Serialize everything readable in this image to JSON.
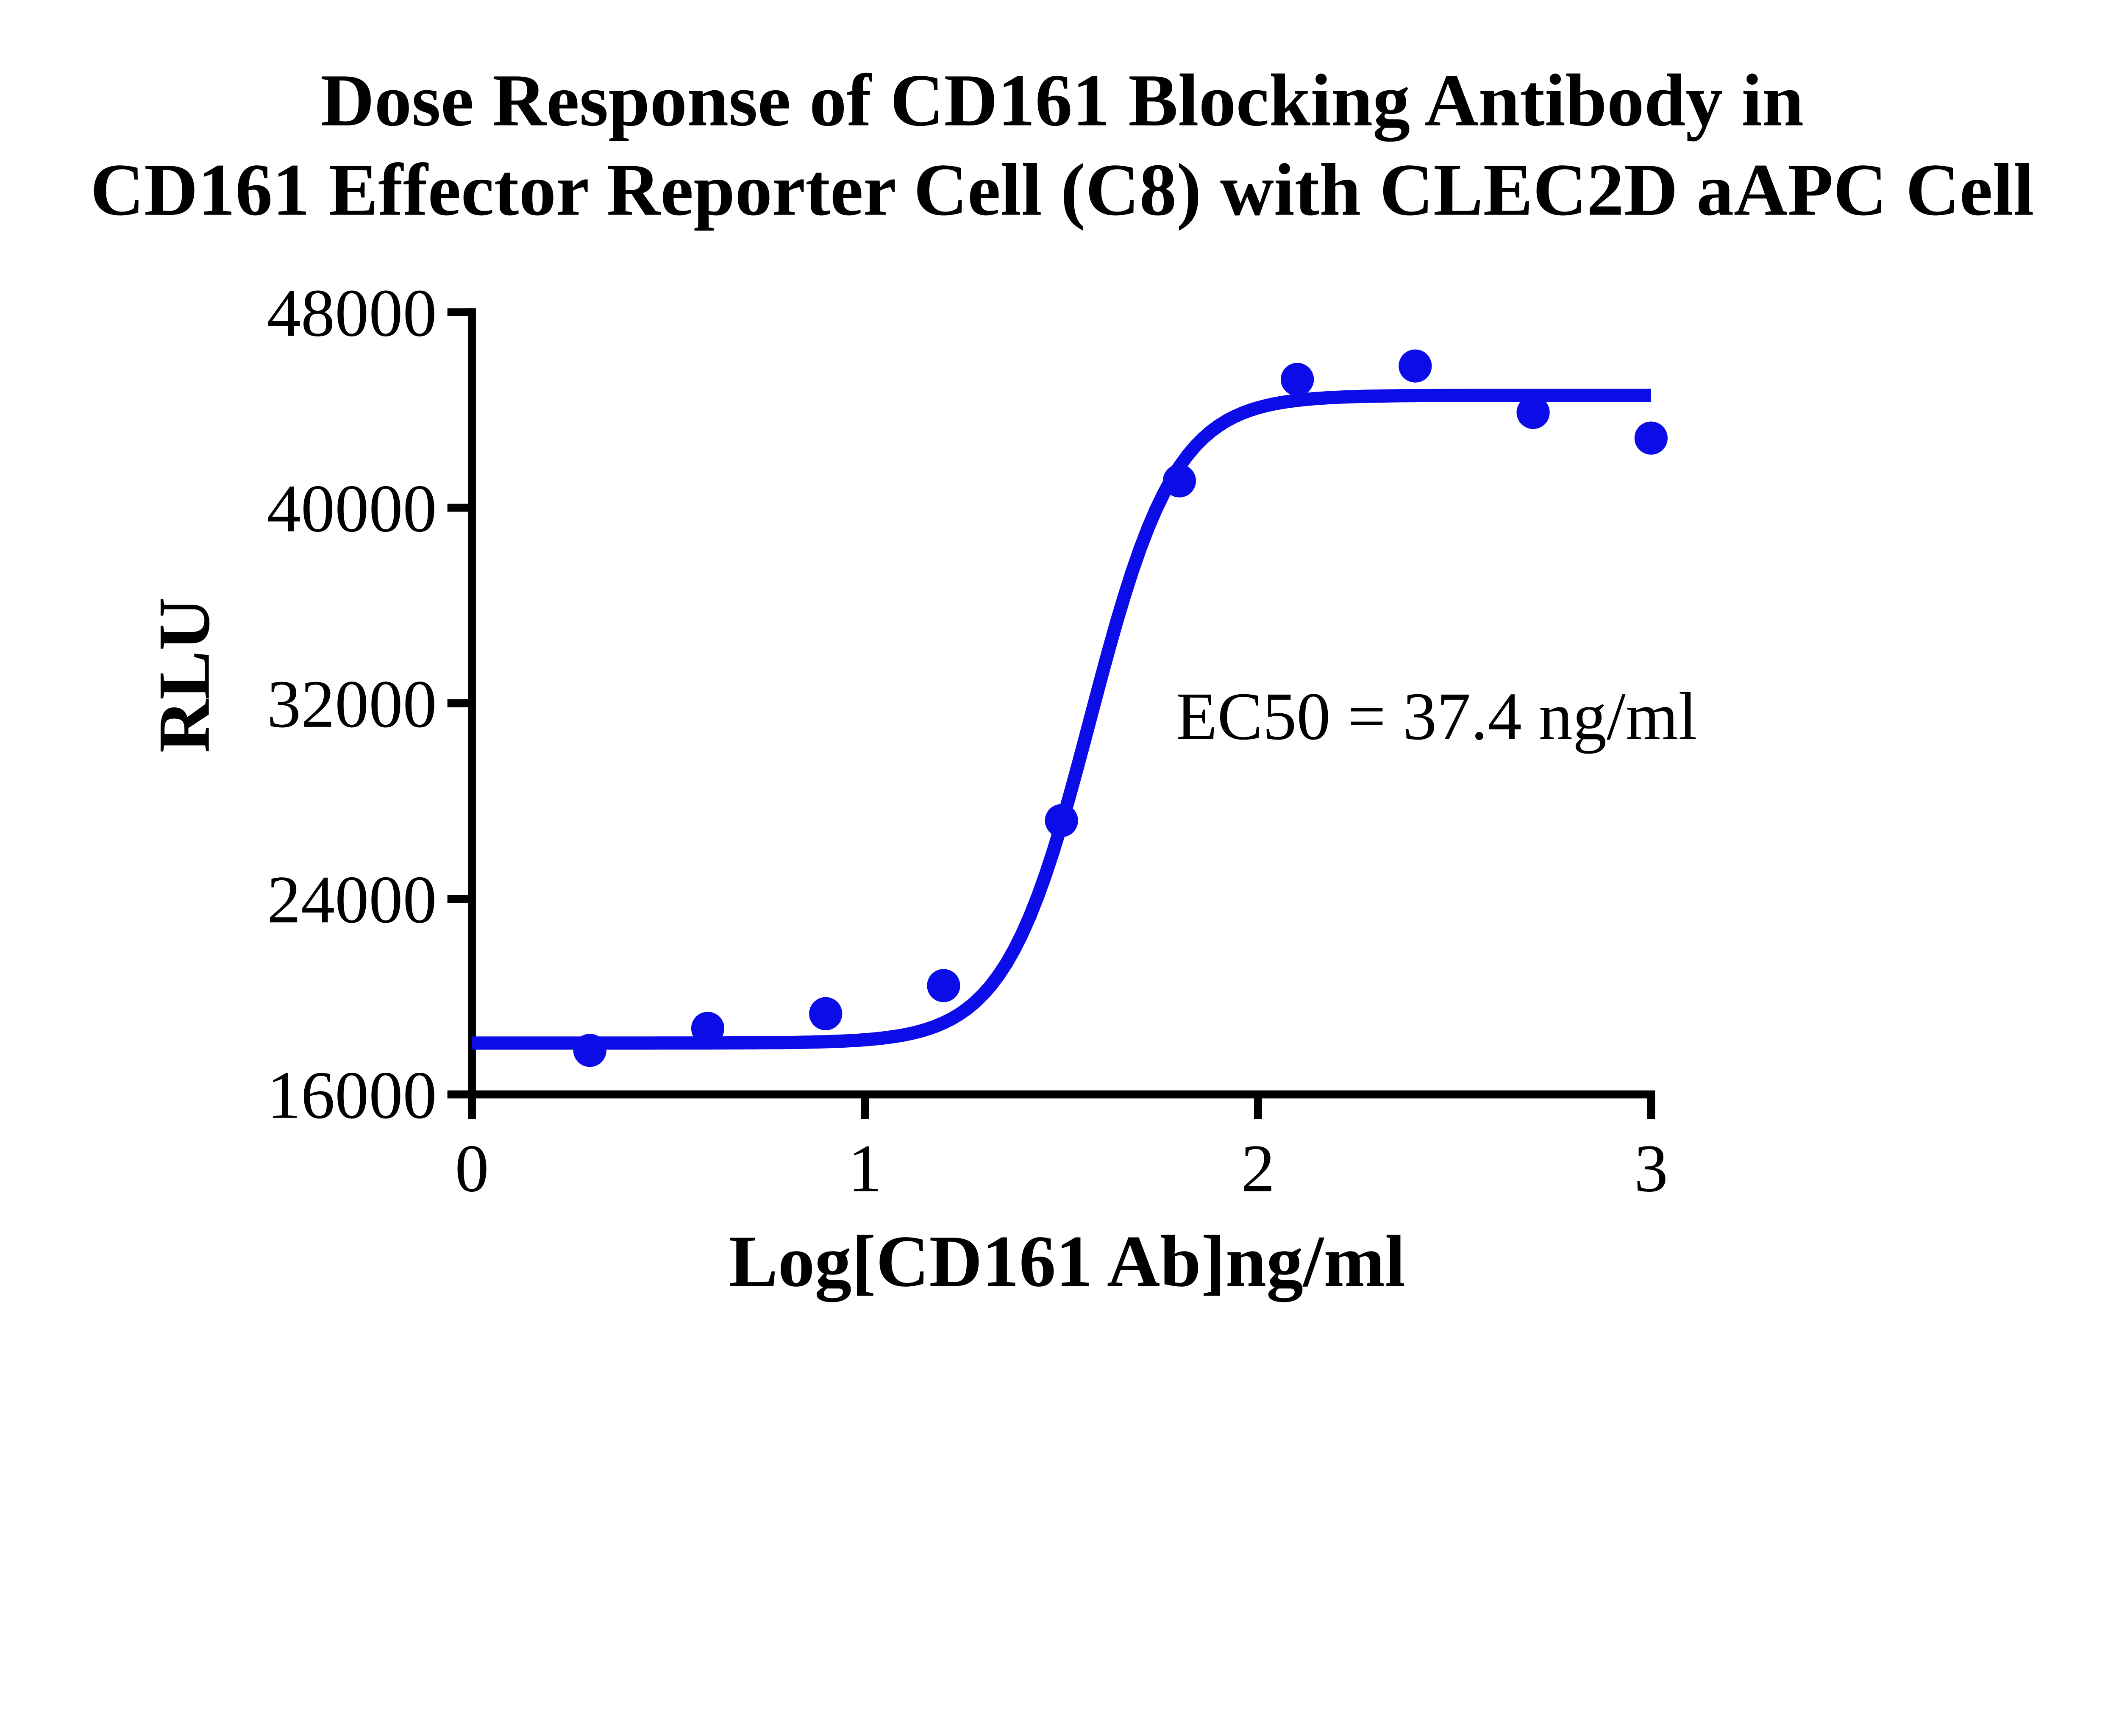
{
  "figure": {
    "title_line1": "Dose Response of CD161 Blocking Antibody in",
    "title_line2": "CD161 Effector Reporter Cell (C8) with CLEC2D aAPC Cell",
    "colors": {
      "curve_blue": "#0C0CE8",
      "axis_black": "#000000",
      "background": "#FFFFFF"
    }
  },
  "chart_data": {
    "type": "scatter",
    "title": "Dose Response of CD161 Blocking Antibody in CD161 Effector Reporter Cell (C8) with CLEC2D aAPC Cell",
    "xlabel": "Log[CD161 Ab]ng/ml",
    "ylabel": "RLU",
    "xlim": [
      0,
      3
    ],
    "ylim": [
      16000,
      48000
    ],
    "x_ticks": [
      0,
      1,
      2,
      3
    ],
    "y_ticks": [
      16000,
      24000,
      32000,
      40000,
      48000
    ],
    "grid": false,
    "legend_position": "none",
    "annotation": "EC50 = 37.4 ng/ml",
    "ec50_ng_ml": 37.4,
    "points": {
      "x": [
        0.3,
        0.6,
        0.9,
        1.2,
        1.5,
        1.8,
        2.1,
        2.4,
        2.7,
        3.0
      ],
      "y": [
        17800,
        18700,
        19300,
        20450,
        27200,
        41100,
        45250,
        45800,
        43900,
        42850
      ]
    },
    "fit_curve": {
      "model": "4PL sigmoidal dose-response",
      "bottom": 18100,
      "top": 44600,
      "log_ec50": 1.573,
      "hill_slope": 4.0,
      "x_range": [
        0,
        3
      ]
    }
  }
}
